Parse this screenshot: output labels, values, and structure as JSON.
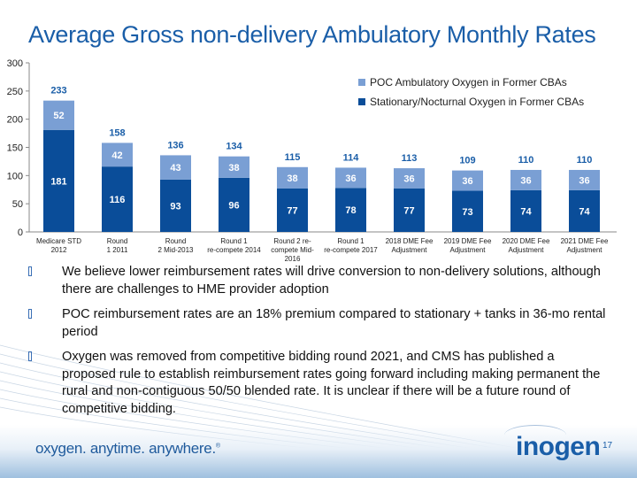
{
  "slide": {
    "title": "Average Gross non-delivery Ambulatory Monthly Rates",
    "page_number": "17",
    "tagline": "oxygen. anytime. anywhere.",
    "tagline_mark": "®",
    "logo_text": "inogen"
  },
  "colors": {
    "title": "#1a5ea8",
    "stationary": "#0a4d99",
    "poc": "#7a9fd4",
    "total_label": "#1a5ea8"
  },
  "bullets": [
    "We believe lower reimbursement rates will drive conversion to non-delivery solutions, although there are challenges to HME provider adoption",
    "POC reimbursement rates are an 18% premium compared to stationary + tanks in 36-mo rental period",
    "Oxygen was removed from competitive bidding round 2021, and CMS has published a proposed rule to establish reimbursement rates going forward including making permanent the rural and non-contiguous 50/50 blended rate. It is unclear if there will be a future round of competitive bidding."
  ],
  "chart_data": {
    "type": "bar",
    "stacked": true,
    "title": "",
    "xlabel": "",
    "ylabel": "",
    "ylim": [
      0,
      300
    ],
    "yticks": [
      0,
      50,
      100,
      150,
      200,
      250,
      300
    ],
    "grid": false,
    "legend_position": "top-right",
    "categories": [
      [
        "Medicare STD",
        "2012"
      ],
      [
        "Round",
        "1 2011"
      ],
      [
        "Round",
        "2 Mid-2013"
      ],
      [
        "Round 1",
        "re-compete 2014"
      ],
      [
        "Round 2 re-",
        "compete Mid-",
        "2016"
      ],
      [
        "Round 1",
        "re-compete 2017"
      ],
      [
        "2018 DME Fee",
        "Adjustment"
      ],
      [
        "2019 DME Fee",
        "Adjustment"
      ],
      [
        "2020 DME Fee",
        "Adjustment"
      ],
      [
        "2021 DME Fee",
        "Adjustment"
      ]
    ],
    "series": [
      {
        "name": "Stationary/Nocturnal Oxygen in Former CBAs",
        "color": "#0a4d99",
        "values": [
          181,
          116,
          93,
          96,
          77,
          78,
          77,
          73,
          74,
          74
        ]
      },
      {
        "name": "POC Ambulatory Oxygen in Former CBAs",
        "color": "#7a9fd4",
        "values": [
          52,
          42,
          43,
          38,
          38,
          36,
          36,
          36,
          36,
          36
        ]
      }
    ],
    "totals": [
      233,
      158,
      136,
      134,
      115,
      114,
      113,
      109,
      110,
      110
    ],
    "legend": [
      {
        "name": "POC Ambulatory Oxygen in Former CBAs",
        "color": "#7a9fd4"
      },
      {
        "name": "Stationary/Nocturnal Oxygen in Former CBAs",
        "color": "#0a4d99"
      }
    ]
  }
}
